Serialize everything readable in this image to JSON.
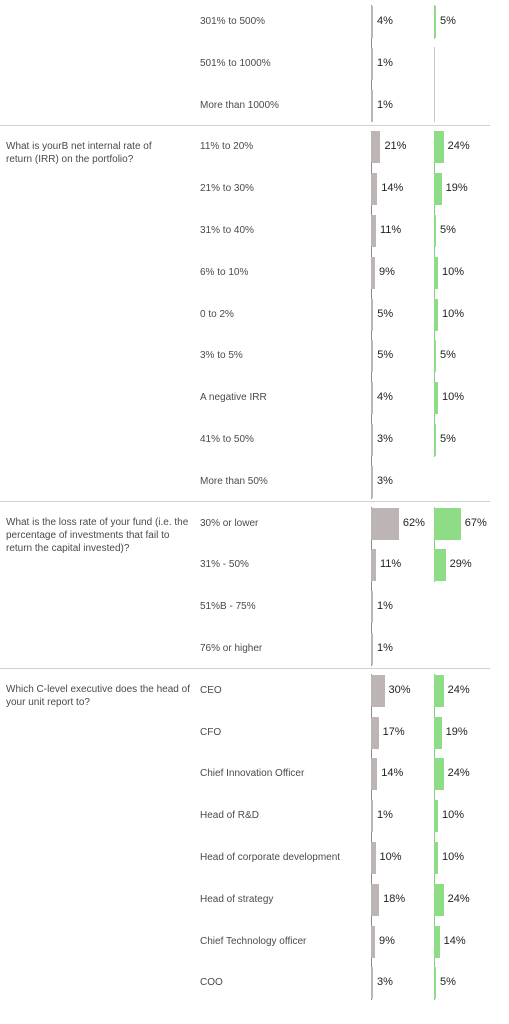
{
  "colors": {
    "series_a": "#bdb5b3",
    "series_b": "#8fdc86",
    "axis_a": "#8a8a8a",
    "axis_b": "#7fd37a",
    "separator": "#cfcfcf"
  },
  "chart_data": {
    "type": "bar",
    "orientation": "horizontal",
    "series": [
      {
        "color": "#bdb5b3"
      },
      {
        "color": "#8fdc86"
      }
    ],
    "groups": [
      {
        "question": "",
        "rows": [
          {
            "label": "301% to 500%",
            "a": "4%",
            "b": "5%"
          },
          {
            "label": "501% to 1000%",
            "a": "1%",
            "b": null
          },
          {
            "label": "More than 1000%",
            "a": "1%",
            "b": null
          }
        ]
      },
      {
        "question": "What is yourB net internal rate of return (IRR) on the portfolio?",
        "rows": [
          {
            "label": "11% to 20%",
            "a": "21%",
            "b": "24%"
          },
          {
            "label": "21% to 30%",
            "a": "14%",
            "b": "19%"
          },
          {
            "label": "31% to 40%",
            "a": "11%",
            "b": "5%"
          },
          {
            "label": "6% to 10%",
            "a": "9%",
            "b": "10%"
          },
          {
            "label": "0 to 2%",
            "a": "5%",
            "b": "10%"
          },
          {
            "label": "3% to 5%",
            "a": "5%",
            "b": "5%"
          },
          {
            "label": "A negative IRR",
            "a": "4%",
            "b": "10%"
          },
          {
            "label": "41% to 50%",
            "a": "3%",
            "b": "5%"
          },
          {
            "label": "More than 50%",
            "a": "3%",
            "b": null
          }
        ]
      },
      {
        "question": "What is the loss rate of your fund (i.e. the percentage of investments that fail to return the capital invested)?",
        "rows": [
          {
            "label": "30% or lower",
            "a": "62%",
            "b": "67%"
          },
          {
            "label": "31% - 50%",
            "a": "11%",
            "b": "29%"
          },
          {
            "label": "51%B - 75%",
            "a": "1%",
            "b": null
          },
          {
            "label": "76% or higher",
            "a": "1%",
            "b": null
          }
        ]
      },
      {
        "question": "Which C-level executive does the head of your unit report to?",
        "rows": [
          {
            "label": "CEO",
            "a": "30%",
            "b": "24%"
          },
          {
            "label": "CFO",
            "a": "17%",
            "b": "19%"
          },
          {
            "label": "Chief Innovation Officer",
            "a": "14%",
            "b": "24%"
          },
          {
            "label": "Head of R&D",
            "a": "1%",
            "b": "10%"
          },
          {
            "label": "Head of corporate development",
            "a": "10%",
            "b": "10%"
          },
          {
            "label": "Head of strategy",
            "a": "18%",
            "b": "24%"
          },
          {
            "label": "Chief Technology officer",
            "a": "9%",
            "b": "14%"
          },
          {
            "label": "COO",
            "a": "3%",
            "b": "5%"
          }
        ]
      }
    ]
  }
}
